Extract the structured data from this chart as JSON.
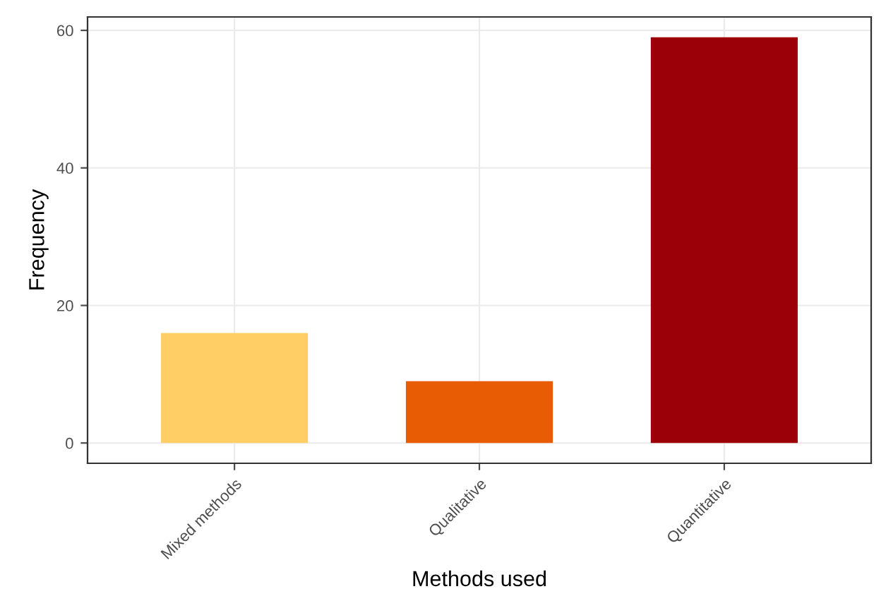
{
  "chart_data": {
    "type": "bar",
    "xlabel": "Methods used",
    "ylabel": "Frequency",
    "categories": [
      "Mixed methods",
      "Qualitative",
      "Quantitative"
    ],
    "values": [
      16,
      9,
      59
    ],
    "colors": [
      "#ffcf66",
      "#e85d04",
      "#9b0008"
    ],
    "ylim": [
      -2.95,
      61.95
    ],
    "yticks": [
      0,
      20,
      40,
      60
    ],
    "grid": true
  }
}
